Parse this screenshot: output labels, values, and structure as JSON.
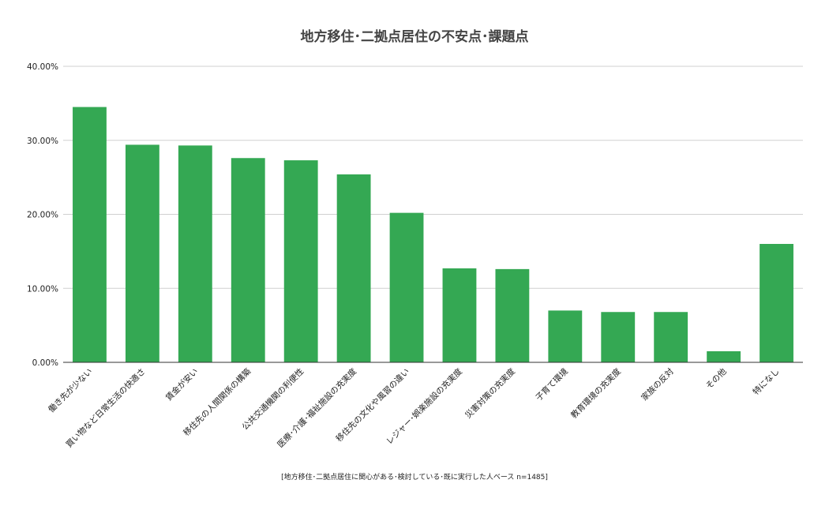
{
  "chart_data": {
    "type": "bar",
    "title": "地方移住･二拠点居住の不安点･課題点",
    "footnote": "[地方移住･二拠点居住に関心がある･検討している･既に実行した人ベース n=1485]",
    "categories": [
      "働き先が少ない",
      "買い物など日常生活の快適さ",
      "賃金が安い",
      "移住先の人間関係の構築",
      "公共交通機関の利便性",
      "医療･介護･福祉施設の充実度",
      "移住先の文化や風習の違い",
      "レジャー･娯楽施設の充実度",
      "災害対策の充実度",
      "子育て環境",
      "教育環境の充実度",
      "家族の反対",
      "その他",
      "特になし"
    ],
    "values": [
      34.5,
      29.4,
      29.3,
      27.6,
      27.3,
      25.4,
      20.2,
      12.7,
      12.6,
      7.0,
      6.8,
      6.8,
      1.5,
      16.0
    ],
    "ylim": [
      0,
      40
    ],
    "yticks": [
      "0.00%",
      "10.00%",
      "20.00%",
      "30.00%",
      "40.00%"
    ],
    "grid": true,
    "colors": {
      "bar": "#34a853",
      "grid": "#d0d0d0",
      "axis": "#333333"
    }
  }
}
